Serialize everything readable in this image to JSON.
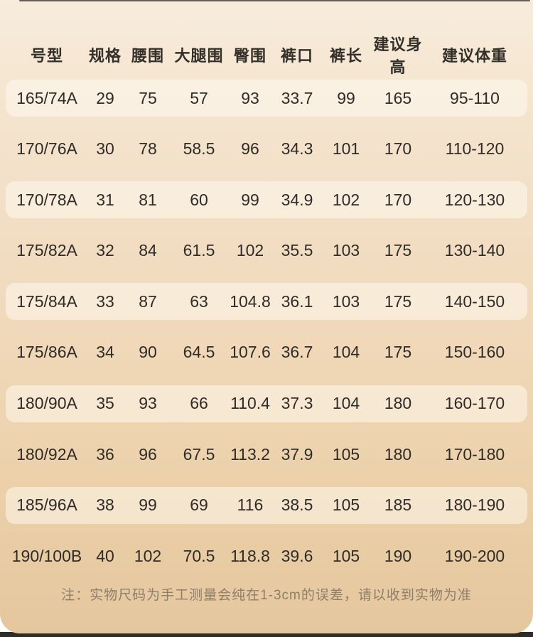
{
  "table": {
    "columns": [
      "号型",
      "规格",
      "腰围",
      "大腿围",
      "臀围",
      "裤口",
      "裤长",
      "建议身高",
      "建议体重"
    ],
    "rows": [
      [
        "165/74A",
        "29",
        "75",
        "57",
        "93",
        "33.7",
        "99",
        "165",
        "95-110"
      ],
      [
        "170/76A",
        "30",
        "78",
        "58.5",
        "96",
        "34.3",
        "101",
        "170",
        "110-120"
      ],
      [
        "170/78A",
        "31",
        "81",
        "60",
        "99",
        "34.9",
        "102",
        "170",
        "120-130"
      ],
      [
        "175/82A",
        "32",
        "84",
        "61.5",
        "102",
        "35.5",
        "103",
        "175",
        "130-140"
      ],
      [
        "175/84A",
        "33",
        "87",
        "63",
        "104.8",
        "36.1",
        "103",
        "175",
        "140-150"
      ],
      [
        "175/86A",
        "34",
        "90",
        "64.5",
        "107.6",
        "36.7",
        "104",
        "175",
        "150-160"
      ],
      [
        "180/90A",
        "35",
        "93",
        "66",
        "110.4",
        "37.3",
        "104",
        "180",
        "160-170"
      ],
      [
        "180/92A",
        "36",
        "96",
        "67.5",
        "113.2",
        "37.9",
        "105",
        "180",
        "170-180"
      ],
      [
        "185/96A",
        "38",
        "99",
        "69",
        "116",
        "38.5",
        "105",
        "185",
        "180-190"
      ],
      [
        "190/100B",
        "40",
        "102",
        "70.5",
        "118.8",
        "39.6",
        "105",
        "190",
        "190-200"
      ]
    ]
  },
  "note": "注：实物尺码为手工测量会纯在1-3cm的误差，请以收到实物为准",
  "colors": {
    "page_top": "#f7ecdd",
    "page_bottom": "#e5c79e",
    "band": "rgba(255,251,244,0.50)",
    "text": "#2f2c27",
    "header_text": "#332f29",
    "note_text": "#8f7e67",
    "top_line": "#4a453e",
    "bottom_bar": "#2f2b27"
  }
}
